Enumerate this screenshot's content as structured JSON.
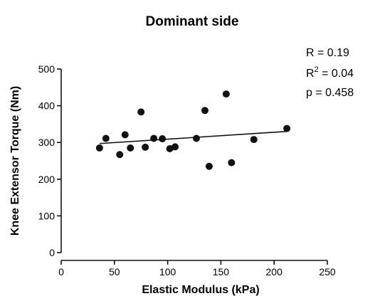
{
  "chart_data": {
    "type": "scatter",
    "title": "Dominant side",
    "xlabel": "Elastic Modulus (kPa)",
    "ylabel": "Knee Extensor Torque (Nm)",
    "xlim": [
      0,
      250
    ],
    "ylim": [
      0,
      500
    ],
    "xticks": [
      0,
      50,
      100,
      150,
      200,
      250
    ],
    "yticks": [
      0,
      100,
      200,
      300,
      400,
      500
    ],
    "grid": false,
    "points": [
      {
        "x": 36,
        "y": 285
      },
      {
        "x": 42,
        "y": 311
      },
      {
        "x": 55,
        "y": 267
      },
      {
        "x": 60,
        "y": 321
      },
      {
        "x": 65,
        "y": 285
      },
      {
        "x": 75,
        "y": 383
      },
      {
        "x": 79,
        "y": 287
      },
      {
        "x": 87,
        "y": 311
      },
      {
        "x": 95,
        "y": 310
      },
      {
        "x": 102,
        "y": 283
      },
      {
        "x": 107,
        "y": 288
      },
      {
        "x": 127,
        "y": 311
      },
      {
        "x": 135,
        "y": 387
      },
      {
        "x": 139,
        "y": 235
      },
      {
        "x": 155,
        "y": 432
      },
      {
        "x": 160,
        "y": 245
      },
      {
        "x": 181,
        "y": 308
      },
      {
        "x": 212,
        "y": 338
      }
    ],
    "regression_line": {
      "x": [
        36,
        212
      ],
      "y": [
        297,
        330
      ]
    },
    "stats": {
      "r": "R = 0.19",
      "r2_prefix": "R",
      "r2_sup": "2",
      "r2_suffix": " = 0.04",
      "p": "p = 0.458"
    },
    "colors": {
      "points": "#111111",
      "axes": "#111111",
      "line": "#111111"
    }
  }
}
